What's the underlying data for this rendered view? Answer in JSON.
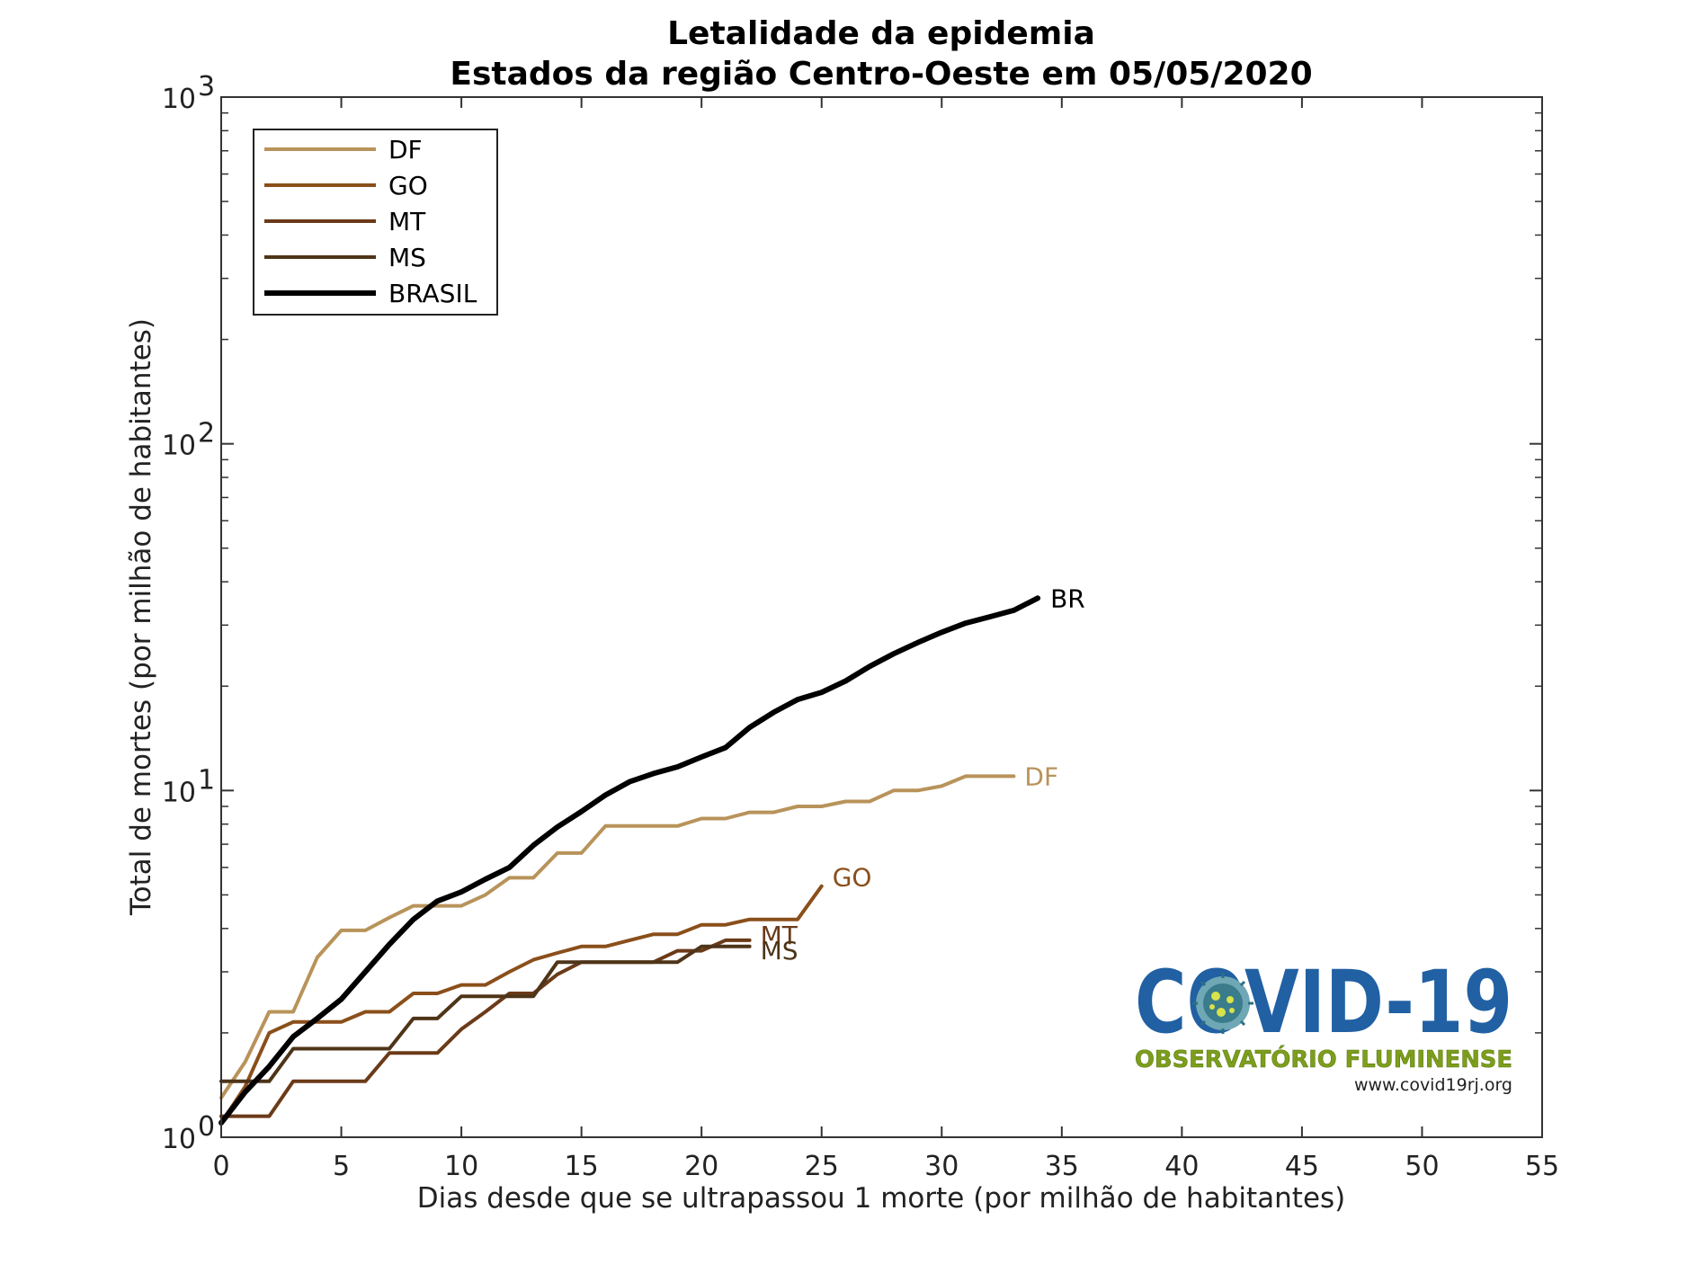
{
  "chart_data": {
    "type": "line",
    "title": "Letalidade da epidemia",
    "subtitle": "Estados da região Centro-Oeste em 05/05/2020",
    "xlabel": "Dias desde que se ultrapassou 1 morte (por milhão de habitantes)",
    "ylabel": "Total de mortes (por milhão de habitantes)",
    "xlim": [
      0,
      55
    ],
    "ylim": [
      1,
      1000
    ],
    "yscale": "log",
    "xticks": [
      "0",
      "5",
      "10",
      "15",
      "20",
      "25",
      "30",
      "35",
      "40",
      "45",
      "50",
      "55"
    ],
    "yticks": [
      {
        "base": "10",
        "exp": "0"
      },
      {
        "base": "10",
        "exp": "1"
      },
      {
        "base": "10",
        "exp": "2"
      },
      {
        "base": "10",
        "exp": "3"
      }
    ],
    "grid": false,
    "legend_position": "top-left",
    "series": [
      {
        "name": "DF",
        "label": "DF",
        "color": "#b8935a",
        "width": 4,
        "x": [
          0,
          1,
          2,
          3,
          4,
          5,
          6,
          7,
          8,
          9,
          10,
          11,
          12,
          13,
          14,
          15,
          16,
          17,
          18,
          19,
          20,
          21,
          22,
          23,
          24,
          25,
          26,
          27,
          28,
          29,
          30,
          31,
          32,
          33
        ],
        "y": [
          1.3,
          1.65,
          2.3,
          2.3,
          3.3,
          3.95,
          3.95,
          4.3,
          4.65,
          4.65,
          4.65,
          5.0,
          5.6,
          5.6,
          6.6,
          6.6,
          7.9,
          7.9,
          7.9,
          7.9,
          8.3,
          8.3,
          8.65,
          8.65,
          9.0,
          9.0,
          9.3,
          9.3,
          10.0,
          10.0,
          10.3,
          11.0,
          11.0,
          11.0
        ]
      },
      {
        "name": "GO",
        "label": "GO",
        "color": "#8a4f1a",
        "width": 4,
        "x": [
          0,
          1,
          2,
          3,
          4,
          5,
          6,
          7,
          8,
          9,
          10,
          11,
          12,
          13,
          14,
          15,
          16,
          17,
          18,
          19,
          20,
          21,
          22,
          23,
          24,
          25
        ],
        "y": [
          1.1,
          1.4,
          2.0,
          2.15,
          2.15,
          2.15,
          2.3,
          2.3,
          2.6,
          2.6,
          2.75,
          2.75,
          3.0,
          3.25,
          3.4,
          3.55,
          3.55,
          3.7,
          3.85,
          3.85,
          4.1,
          4.1,
          4.25,
          4.25,
          4.25,
          5.3
        ]
      },
      {
        "name": "MT",
        "label": "MT",
        "color": "#6b3a18",
        "width": 4,
        "x": [
          0,
          1,
          2,
          3,
          4,
          5,
          6,
          7,
          8,
          9,
          10,
          11,
          12,
          13,
          14,
          15,
          16,
          17,
          18,
          19,
          20,
          21,
          22
        ],
        "y": [
          1.15,
          1.15,
          1.15,
          1.45,
          1.45,
          1.45,
          1.45,
          1.75,
          1.75,
          1.75,
          2.05,
          2.3,
          2.6,
          2.6,
          2.95,
          3.2,
          3.2,
          3.2,
          3.2,
          3.45,
          3.45,
          3.7,
          3.7
        ]
      },
      {
        "name": "MS",
        "label": "MS",
        "color": "#4e3418",
        "width": 4,
        "x": [
          0,
          1,
          2,
          3,
          4,
          5,
          6,
          7,
          8,
          9,
          10,
          11,
          12,
          13,
          14,
          15,
          16,
          17,
          18,
          19,
          20,
          21,
          22
        ],
        "y": [
          1.45,
          1.45,
          1.45,
          1.8,
          1.8,
          1.8,
          1.8,
          1.8,
          2.2,
          2.2,
          2.55,
          2.55,
          2.55,
          2.55,
          3.2,
          3.2,
          3.2,
          3.2,
          3.2,
          3.2,
          3.55,
          3.55,
          3.55
        ]
      },
      {
        "name": "BRASIL",
        "label": "BR",
        "color": "#000000",
        "width": 6,
        "x": [
          0,
          1,
          2,
          3,
          4,
          5,
          6,
          7,
          8,
          9,
          10,
          11,
          12,
          13,
          14,
          15,
          16,
          17,
          18,
          19,
          20,
          21,
          22,
          23,
          24,
          25,
          26,
          27,
          28,
          29,
          30,
          31,
          32,
          33,
          34
        ],
        "y": [
          1.1,
          1.35,
          1.6,
          1.95,
          2.2,
          2.5,
          3.0,
          3.6,
          4.25,
          4.8,
          5.1,
          5.55,
          6.0,
          6.95,
          7.85,
          8.7,
          9.7,
          10.6,
          11.2,
          11.7,
          12.5,
          13.3,
          15.2,
          16.8,
          18.3,
          19.2,
          20.7,
          22.8,
          24.8,
          26.7,
          28.6,
          30.4,
          31.7,
          33.1,
          35.9
        ]
      }
    ]
  },
  "logo": {
    "main": "COVID-19",
    "subtitle": "OBSERVATÓRIO FLUMINENSE",
    "url": "www.covid19rj.org"
  }
}
